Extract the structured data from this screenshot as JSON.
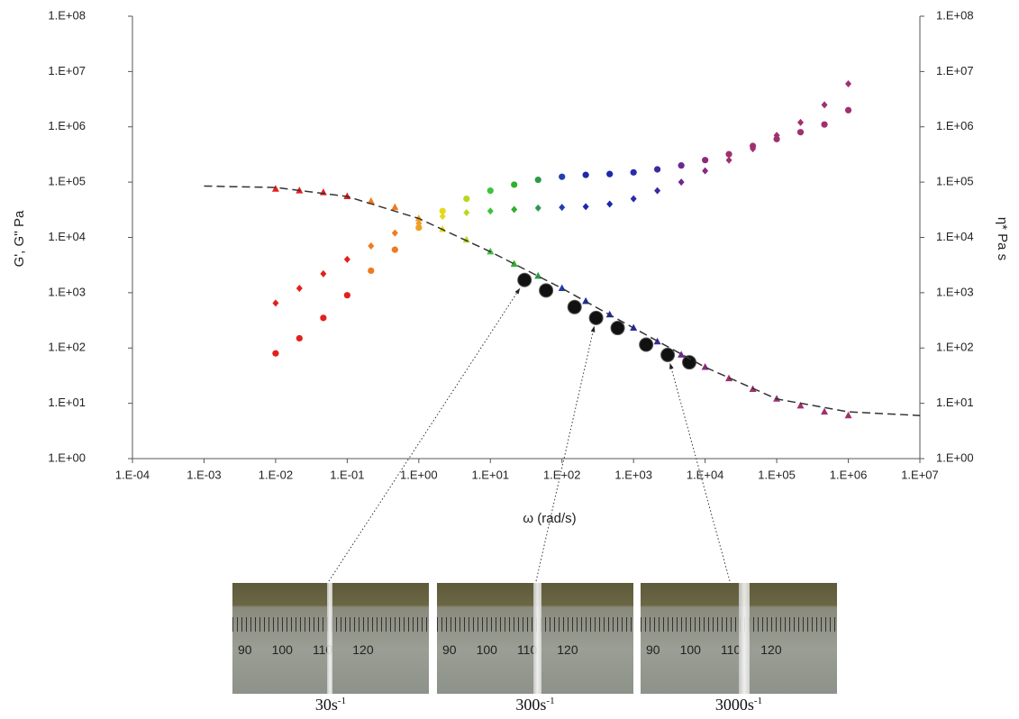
{
  "chart_data": {
    "type": "scatter",
    "log_x": true,
    "log_y": true,
    "xlabel": "ω (rad/s)",
    "ylabel": "G', G'' Pa",
    "y2label": "η* Pa s",
    "xlim": [
      0.0001,
      10000000
    ],
    "ylim": [
      1,
      100000000
    ],
    "y2lim": [
      1,
      100000000
    ],
    "xticks": [
      {
        "value": 0.0001,
        "label": "1.E-04"
      },
      {
        "value": 0.001,
        "label": "1.E-03"
      },
      {
        "value": 0.01,
        "label": "1.E-02"
      },
      {
        "value": 0.1,
        "label": "1.E-01"
      },
      {
        "value": 1,
        "label": "1.E+00"
      },
      {
        "value": 10,
        "label": "1.E+01"
      },
      {
        "value": 100,
        "label": "1.E+02"
      },
      {
        "value": 1000,
        "label": "1.E+03"
      },
      {
        "value": 10000,
        "label": "1.E+04"
      },
      {
        "value": 100000,
        "label": "1.E+05"
      },
      {
        "value": 1000000,
        "label": "1.E+06"
      },
      {
        "value": 10000000,
        "label": "1.E+07"
      }
    ],
    "yticks": [
      {
        "value": 1,
        "label": "1.E+00"
      },
      {
        "value": 10,
        "label": "1.E+01"
      },
      {
        "value": 100,
        "label": "1.E+02"
      },
      {
        "value": 1000,
        "label": "1.E+03"
      },
      {
        "value": 10000,
        "label": "1.E+04"
      },
      {
        "value": 100000,
        "label": "1.E+05"
      },
      {
        "value": 1000000,
        "label": "1.E+06"
      },
      {
        "value": 10000000,
        "label": "1.E+07"
      },
      {
        "value": 100000000,
        "label": "1.E+08"
      }
    ],
    "y2ticks": [
      {
        "value": 1,
        "label": "1.E+00"
      },
      {
        "value": 10,
        "label": "1.E+01"
      },
      {
        "value": 100,
        "label": "1.E+02"
      },
      {
        "value": 1000,
        "label": "1.E+03"
      },
      {
        "value": 10000,
        "label": "1.E+04"
      },
      {
        "value": 100000,
        "label": "1.E+05"
      },
      {
        "value": 1000000,
        "label": "1.E+06"
      },
      {
        "value": 10000000,
        "label": "1.E+07"
      },
      {
        "value": 100000000,
        "label": "1.E+08"
      }
    ],
    "series": [
      {
        "marker": "circle",
        "x": [
          0.01,
          0.0215,
          0.0464,
          0.1,
          0.215,
          0.464,
          1,
          2.15,
          4.64,
          10,
          21.5,
          46.4,
          100,
          215,
          464,
          1000,
          2150,
          4640,
          10000,
          21500,
          46400,
          100000,
          215000,
          464000,
          1000000
        ],
        "values": [
          80,
          150,
          350,
          900,
          2500,
          6000,
          15000,
          30000,
          50000,
          70000,
          90000,
          110000,
          125000,
          135000,
          140000,
          150000,
          170000,
          200000,
          250000,
          320000,
          450000,
          600000,
          800000,
          1100000,
          2000000
        ],
        "colors": [
          "#e3201b",
          "#e3201b",
          "#e3201b",
          "#e3201b",
          "#f07a1e",
          "#f07a1e",
          "#f0a020",
          "#e6d81c",
          "#b8d81c",
          "#3cc43c",
          "#2fb02f",
          "#2a9a4a",
          "#2040b0",
          "#1a2aa8",
          "#1a2aa8",
          "#2a2ab0",
          "#3a2aa0",
          "#6a2a90",
          "#8a2a80",
          "#a0306f",
          "#a0306f",
          "#a0306f",
          "#a0306f",
          "#a0306f",
          "#a0306f"
        ]
      },
      {
        "marker": "diamond",
        "x": [
          0.01,
          0.0215,
          0.0464,
          0.1,
          0.215,
          0.464,
          1,
          2.15,
          4.64,
          10,
          21.5,
          46.4,
          100,
          215,
          464,
          1000,
          2150,
          4640,
          10000,
          21500,
          46400,
          100000,
          215000,
          464000,
          1000000
        ],
        "values": [
          650,
          1200,
          2200,
          4000,
          7000,
          12000,
          18000,
          24000,
          28000,
          30000,
          32000,
          34000,
          35000,
          36000,
          40000,
          50000,
          70000,
          100000,
          160000,
          250000,
          400000,
          700000,
          1200000,
          2500000,
          6000000
        ],
        "colors": [
          "#e3201b",
          "#e3201b",
          "#e3201b",
          "#e3201b",
          "#f07a1e",
          "#f07a1e",
          "#f0a020",
          "#e6d81c",
          "#b8d81c",
          "#3cc43c",
          "#2fb02f",
          "#2a9a4a",
          "#2040b0",
          "#1a2aa8",
          "#1a2aa8",
          "#2a2ab0",
          "#3a2aa0",
          "#6a2a90",
          "#8a2a80",
          "#a0306f",
          "#a0306f",
          "#a0306f",
          "#a0306f",
          "#a0306f",
          "#a0306f"
        ]
      },
      {
        "marker": "triangle",
        "axis": "y2",
        "x": [
          0.01,
          0.0215,
          0.0464,
          0.1,
          0.215,
          0.464,
          1,
          2.15,
          4.64,
          10,
          21.5,
          46.4,
          100,
          215,
          464,
          1000,
          2150,
          4640,
          10000,
          21500,
          46400,
          100000,
          215000,
          464000,
          1000000
        ],
        "values": [
          75000,
          70000,
          65000,
          55000,
          45000,
          35000,
          22000,
          14000,
          9000,
          5500,
          3300,
          2000,
          1200,
          700,
          400,
          230,
          130,
          75,
          45,
          28,
          18,
          12,
          9,
          7,
          6
        ],
        "colors": [
          "#e3201b",
          "#e3201b",
          "#e3201b",
          "#e3201b",
          "#f07a1e",
          "#f07a1e",
          "#f0a020",
          "#e6d81c",
          "#b8d81c",
          "#3cc43c",
          "#2fb02f",
          "#2a9a4a",
          "#2040b0",
          "#1a2aa8",
          "#1a2aa8",
          "#2a2ab0",
          "#3a2aa0",
          "#6a2a90",
          "#8a2a80",
          "#a0306f",
          "#a0306f",
          "#a0306f",
          "#a0306f",
          "#a0306f",
          "#a0306f"
        ]
      },
      {
        "marker": "dot",
        "axis": "y2",
        "color": "#111111",
        "x": [
          30,
          60,
          150,
          300,
          600,
          1500,
          3000,
          6000
        ],
        "values": [
          1700,
          1100,
          550,
          350,
          230,
          115,
          75,
          55
        ]
      },
      {
        "marker": "dashed-line",
        "axis": "y2",
        "color": "#333333",
        "x": [
          0.001,
          0.01,
          0.1,
          1,
          10,
          100,
          1000,
          10000,
          100000,
          1000000,
          10000000
        ],
        "values": [
          85000,
          80000,
          55000,
          22000,
          5500,
          1200,
          230,
          45,
          12,
          7,
          6
        ]
      }
    ]
  },
  "photos": {
    "ruler_labels": [
      "90",
      "100",
      "110",
      "120"
    ],
    "items": [
      {
        "label": "30s",
        "sup": "-1"
      },
      {
        "label": "300s",
        "sup": "-1"
      },
      {
        "label": "3000s",
        "sup": "-1"
      }
    ]
  }
}
